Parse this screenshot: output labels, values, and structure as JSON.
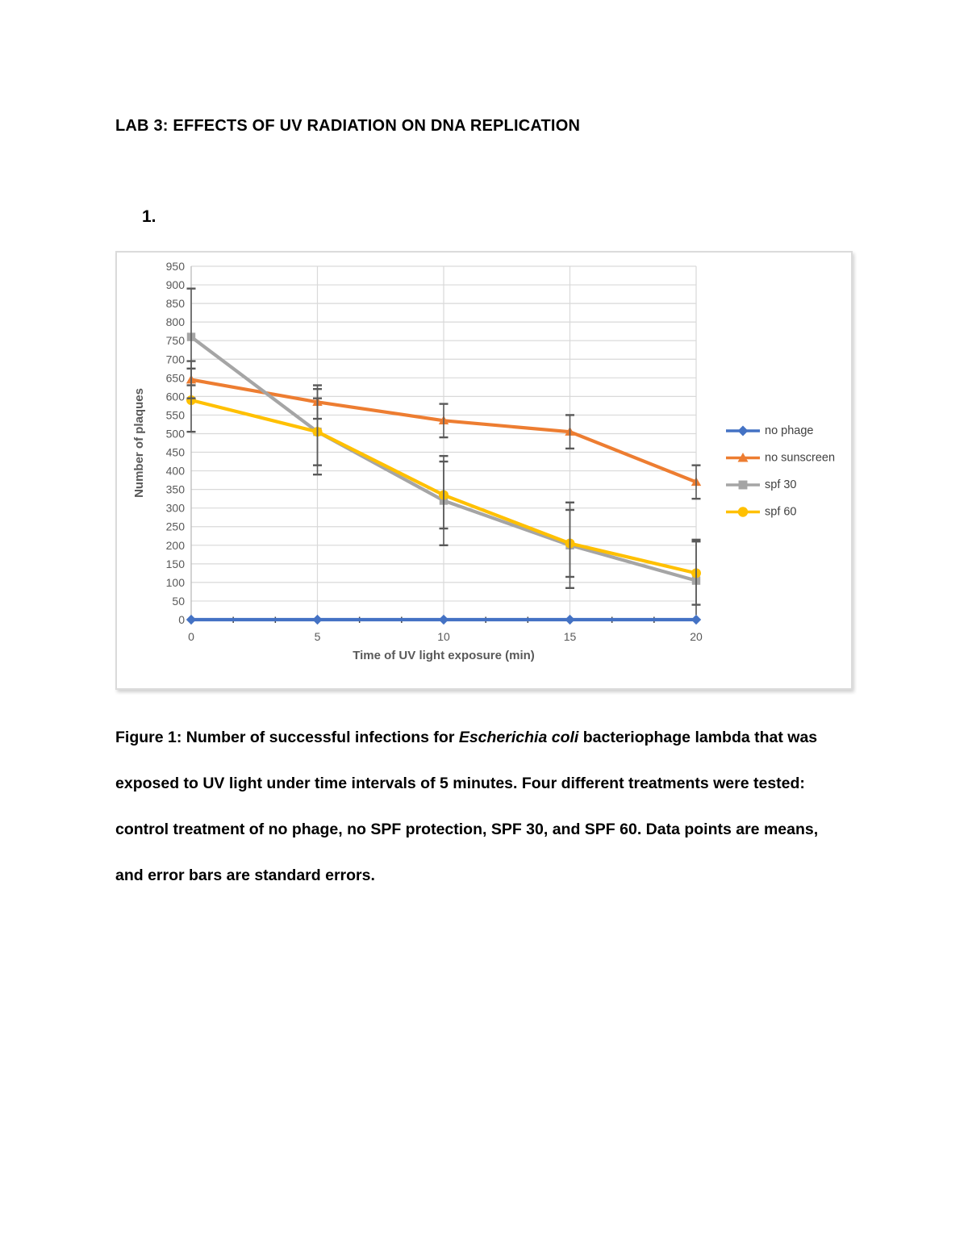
{
  "document": {
    "title": "LAB 3: EFFECTS OF UV RADIATION ON DNA REPLICATION",
    "list_number": "1.",
    "caption_lines": [
      [
        {
          "t": "Figure 1: Number of successful infections for "
        },
        {
          "t": "Escherichia coli",
          "i": true
        },
        {
          "t": " bacteriophage lambda that was"
        }
      ],
      [
        {
          "t": "exposed to UV light under time intervals of 5 minutes. Four different treatments were tested:"
        }
      ],
      [
        {
          "t": "control treatment of no phage, no SPF protection, SPF 30, and SPF 60. Data points are means,"
        }
      ],
      [
        {
          "t": "and error bars are standard errors."
        }
      ]
    ]
  },
  "chart_data": {
    "type": "line",
    "title": "",
    "xlabel": "Time of UV light exposure (min)",
    "ylabel": "Number of plaques",
    "x": [
      0,
      5,
      10,
      15,
      20
    ],
    "xlim": [
      0,
      20
    ],
    "ylim": [
      0,
      950
    ],
    "ytick_step": 50,
    "grid": true,
    "legend_position": "right",
    "error_bars": "standard errors",
    "colors": {
      "gridline": "#D9D9D9",
      "axis_line": "#BFBFBF",
      "tick_text": "#595959",
      "error_bar": "#595959",
      "minor_tick": "#404040"
    },
    "series": [
      {
        "name": "no phage",
        "color": "#4472C4",
        "marker": "diamond",
        "values": [
          0,
          0,
          0,
          0,
          0
        ],
        "errors": [
          0,
          0,
          0,
          0,
          0
        ]
      },
      {
        "name": "no sunscreen",
        "color": "#ED7D31",
        "marker": "triangle",
        "values": [
          645,
          585,
          535,
          505,
          370
        ],
        "errors": [
          50,
          45,
          45,
          45,
          45
        ]
      },
      {
        "name": "spf 30",
        "color": "#A5A5A5",
        "marker": "square",
        "values": [
          760,
          505,
          320,
          200,
          105
        ],
        "errors": [
          130,
          115,
          120,
          115,
          110
        ]
      },
      {
        "name": "spf 60",
        "color": "#FFC000",
        "marker": "circle",
        "values": [
          590,
          505,
          335,
          205,
          125
        ],
        "errors": [
          85,
          90,
          90,
          90,
          85
        ]
      }
    ]
  }
}
